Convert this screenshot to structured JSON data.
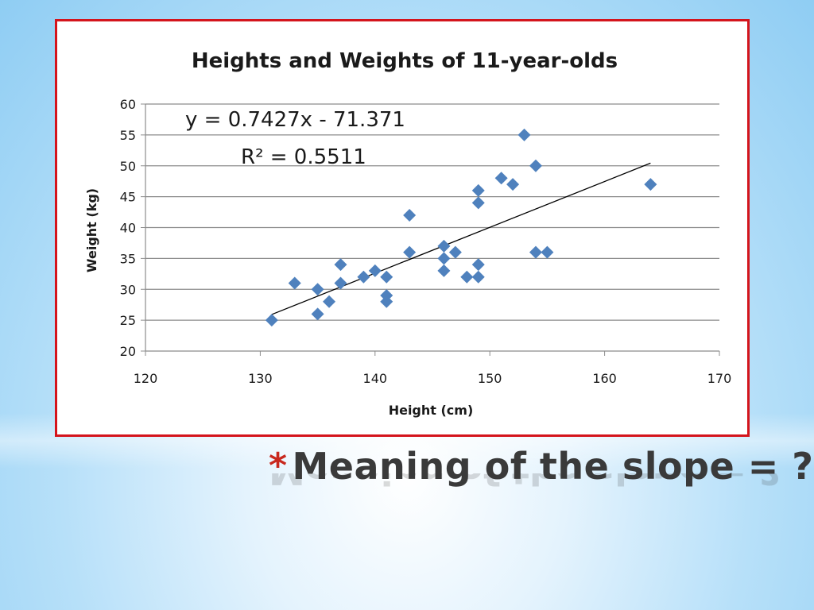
{
  "slide": {
    "bullet": "*",
    "title": "Meaning of the slope = ?"
  },
  "colors": {
    "frame_border": "#d4141c",
    "marker": "#4f81bd",
    "trendline": "#000000",
    "bullet": "#c8281e"
  },
  "chart_data": {
    "type": "scatter",
    "title": "Heights and Weights of 11-year-olds",
    "xlabel": "Height (cm)",
    "ylabel": "Weight (kg)",
    "xlim": [
      120,
      170
    ],
    "ylim": [
      20,
      60
    ],
    "xticks": [
      120,
      130,
      140,
      150,
      160,
      170
    ],
    "yticks": [
      20,
      25,
      30,
      35,
      40,
      45,
      50,
      55,
      60
    ],
    "grid": "horizontal",
    "marker": "diamond",
    "series": [
      {
        "points": [
          [
            131,
            25
          ],
          [
            133,
            31
          ],
          [
            135,
            30
          ],
          [
            135,
            26
          ],
          [
            136,
            28
          ],
          [
            137,
            34
          ],
          [
            137,
            31
          ],
          [
            139,
            32
          ],
          [
            140,
            33
          ],
          [
            141,
            32
          ],
          [
            141,
            29
          ],
          [
            141,
            28
          ],
          [
            143,
            42
          ],
          [
            143,
            36
          ],
          [
            146,
            37
          ],
          [
            146,
            35
          ],
          [
            146,
            33
          ],
          [
            147,
            36
          ],
          [
            148,
            32
          ],
          [
            149,
            46
          ],
          [
            149,
            44
          ],
          [
            149,
            34
          ],
          [
            149,
            32
          ],
          [
            151,
            48
          ],
          [
            152,
            47
          ],
          [
            153,
            55
          ],
          [
            154,
            50
          ],
          [
            154,
            36
          ],
          [
            155,
            36
          ],
          [
            164,
            47
          ]
        ]
      }
    ],
    "trendline": {
      "slope": 0.7427,
      "intercept": -71.371,
      "x_range": [
        131,
        164
      ],
      "equation": "y = 0.7427x - 71.371",
      "r_squared": "R² = 0.5511"
    }
  }
}
